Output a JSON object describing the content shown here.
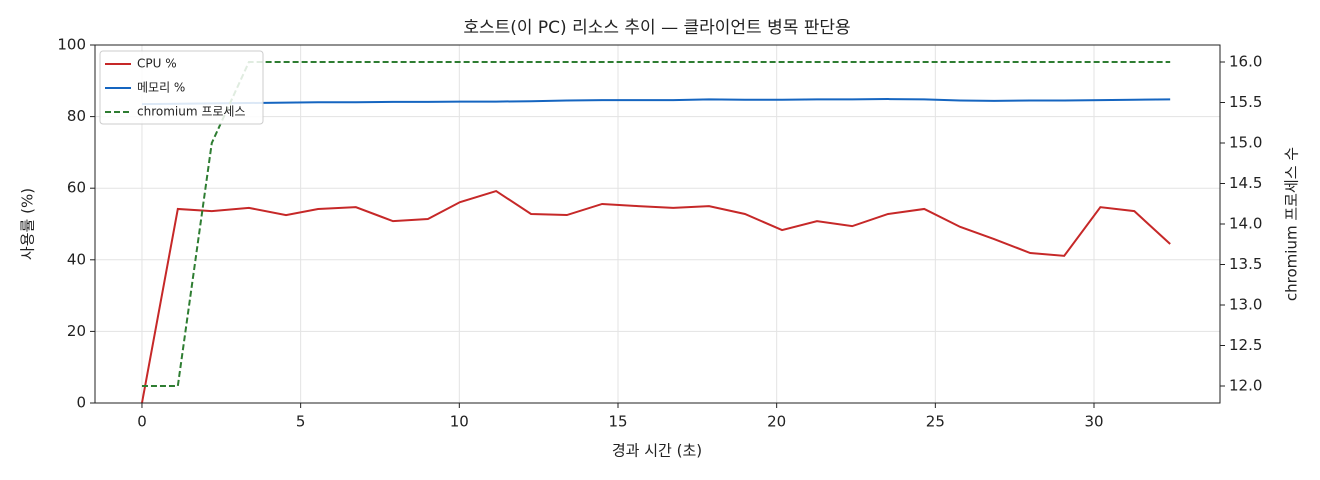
{
  "chart_data": {
    "type": "line",
    "title": "호스트(이 PC) 리소스 추이 — 클라이언트 병목 판단용",
    "xlabel": "경과 시간 (초)",
    "ylabel": "사용률 (%)",
    "y2label": "chromium 프로세스 수",
    "x": [
      0,
      1.13,
      2.2,
      3.37,
      4.54,
      5.55,
      6.74,
      7.91,
      9.01,
      10.02,
      11.16,
      12.26,
      13.39,
      14.5,
      15.63,
      16.74,
      17.87,
      19.0,
      20.17,
      21.27,
      22.38,
      23.51,
      24.65,
      25.78,
      26.85,
      27.99,
      29.06,
      30.2,
      31.27,
      32.4
    ],
    "series": [
      {
        "name": "CPU %",
        "color": "#c62828",
        "axis": "y",
        "linestyle": "solid",
        "values": [
          0,
          54.2,
          53.6,
          54.5,
          52.5,
          54.2,
          54.7,
          50.8,
          51.4,
          56.1,
          59.2,
          52.8,
          52.5,
          55.6,
          55.0,
          54.5,
          55.0,
          52.8,
          48.3,
          50.8,
          49.4,
          52.8,
          54.2,
          49.2,
          45.8,
          41.9,
          41.1,
          54.7,
          53.6,
          44.4
        ]
      },
      {
        "name": "메모리 %",
        "color": "#1565c0",
        "axis": "y",
        "linestyle": "solid",
        "values": [
          83.5,
          83.6,
          83.7,
          83.8,
          83.9,
          84.0,
          84.0,
          84.1,
          84.1,
          84.2,
          84.2,
          84.3,
          84.5,
          84.6,
          84.6,
          84.6,
          84.8,
          84.7,
          84.7,
          84.8,
          84.8,
          84.9,
          84.8,
          84.5,
          84.4,
          84.5,
          84.5,
          84.6,
          84.7,
          84.8
        ]
      },
      {
        "name": "chromium 프로세스",
        "color": "#2e7d32",
        "axis": "y2",
        "linestyle": "dashed",
        "values": [
          12,
          12,
          15,
          16,
          16,
          16,
          16,
          16,
          16,
          16,
          16,
          16,
          16,
          16,
          16,
          16,
          16,
          16,
          16,
          16,
          16,
          16,
          16,
          16,
          16,
          16,
          16,
          16,
          16,
          16
        ]
      }
    ],
    "xlim": [
      -1.48,
      33.97
    ],
    "xticks": [
      0,
      5,
      10,
      15,
      20,
      25,
      30
    ],
    "ylim": [
      0,
      100
    ],
    "yticks": [
      0,
      20,
      40,
      60,
      80,
      100
    ],
    "y2lim": [
      11.79,
      16.21
    ],
    "y2ticks": [
      {
        "value": 12,
        "label": "12.0"
      },
      {
        "value": 12.5,
        "label": "12.5"
      },
      {
        "value": 13,
        "label": "13.0"
      },
      {
        "value": 13.5,
        "label": "13.5"
      },
      {
        "value": 14,
        "label": "14.0"
      },
      {
        "value": 14.5,
        "label": "14.5"
      },
      {
        "value": 15,
        "label": "15.0"
      },
      {
        "value": 15.5,
        "label": "15.5"
      },
      {
        "value": 16,
        "label": "16.0"
      }
    ],
    "grid": true,
    "legend": "upper left"
  }
}
